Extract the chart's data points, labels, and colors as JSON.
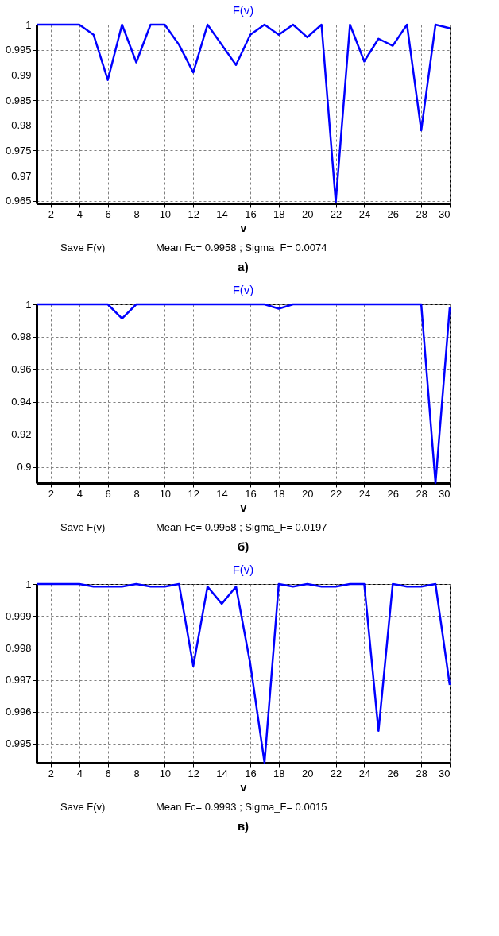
{
  "chart_data": [
    {
      "type": "line",
      "title": "F(v)",
      "xlabel": "v",
      "x": [
        1,
        2,
        3,
        4,
        5,
        6,
        7,
        8,
        9,
        10,
        11,
        12,
        13,
        14,
        15,
        16,
        17,
        18,
        19,
        20,
        21,
        22,
        23,
        24,
        25,
        26,
        27,
        28,
        29,
        30
      ],
      "series": [
        {
          "color": "#0000ff",
          "values": [
            1,
            1,
            1,
            1,
            0.998,
            0.989,
            1,
            0.9925,
            1,
            1,
            0.996,
            0.9905,
            1,
            0.996,
            0.992,
            0.998,
            1,
            0.998,
            1,
            0.9975,
            1,
            0.9648,
            1,
            0.9927,
            0.9972,
            0.9958,
            1,
            0.979,
            1,
            0.9993
          ]
        }
      ],
      "xlim": [
        1,
        30
      ],
      "xticks": [
        2,
        4,
        6,
        8,
        10,
        12,
        14,
        16,
        18,
        20,
        22,
        24,
        26,
        28,
        30
      ],
      "ylim": [
        0.9645,
        1
      ],
      "yticks": [
        0.965,
        0.97,
        0.975,
        0.98,
        0.985,
        0.99,
        0.995,
        1
      ],
      "grid": true,
      "legend": false,
      "annotations": [
        "Save F(v)",
        "Mean Fc= 0.9958 ; Sigma_F= 0.0074",
        "а)"
      ]
    },
    {
      "type": "line",
      "title": "F(v)",
      "xlabel": "v",
      "x": [
        1,
        2,
        3,
        4,
        5,
        6,
        7,
        8,
        9,
        10,
        11,
        12,
        13,
        14,
        15,
        16,
        17,
        18,
        19,
        20,
        21,
        22,
        23,
        24,
        25,
        26,
        27,
        28,
        29,
        30
      ],
      "series": [
        {
          "color": "#0000ff",
          "values": [
            1,
            1,
            1,
            1,
            1,
            1,
            0.9913,
            1,
            1,
            1,
            1,
            1,
            1,
            1,
            1,
            1,
            1,
            0.9973,
            1,
            1,
            1,
            1,
            1,
            1,
            1,
            1,
            1,
            1,
            0.89,
            0.998
          ]
        }
      ],
      "xlim": [
        1,
        30
      ],
      "xticks": [
        2,
        4,
        6,
        8,
        10,
        12,
        14,
        16,
        18,
        20,
        22,
        24,
        26,
        28,
        30
      ],
      "ylim": [
        0.89,
        1
      ],
      "yticks": [
        0.9,
        0.92,
        0.94,
        0.96,
        0.98,
        1
      ],
      "grid": true,
      "legend": false,
      "annotations": [
        "Save F(v)",
        "Mean Fc= 0.9958 ; Sigma_F= 0.0197",
        "б)"
      ]
    },
    {
      "type": "line",
      "title": "F(v)",
      "xlabel": "v",
      "x": [
        1,
        2,
        3,
        4,
        5,
        6,
        7,
        8,
        9,
        10,
        11,
        12,
        13,
        14,
        15,
        16,
        17,
        18,
        19,
        20,
        21,
        22,
        23,
        24,
        25,
        26,
        27,
        28,
        29,
        30
      ],
      "series": [
        {
          "color": "#0000ff",
          "values": [
            1,
            1,
            1,
            1,
            0.99992,
            0.99992,
            0.99992,
            1,
            0.99992,
            0.99992,
            1,
            0.99743,
            0.99992,
            0.99938,
            0.99992,
            0.9975,
            0.9944,
            1,
            0.99992,
            1,
            0.99992,
            0.99992,
            1,
            1,
            0.9954,
            1,
            0.99992,
            0.99992,
            1,
            0.99684
          ]
        }
      ],
      "xlim": [
        1,
        30
      ],
      "xticks": [
        2,
        4,
        6,
        8,
        10,
        12,
        14,
        16,
        18,
        20,
        22,
        24,
        26,
        28,
        30
      ],
      "ylim": [
        0.9944,
        1
      ],
      "yticks": [
        0.995,
        0.996,
        0.997,
        0.998,
        0.999,
        1
      ],
      "grid": true,
      "legend": false,
      "annotations": [
        "Save F(v)",
        "Mean Fc= 0.9993 ; Sigma_F= 0.0015",
        "в)"
      ]
    }
  ]
}
